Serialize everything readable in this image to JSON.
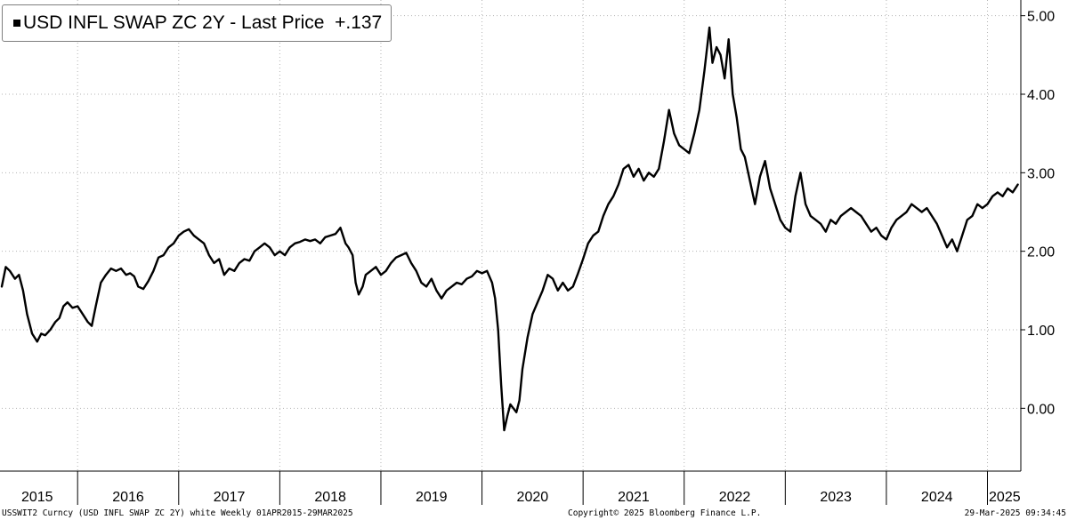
{
  "legend": {
    "label": "USD INFL SWAP ZC 2Y - Last Price",
    "last_value": "+.137"
  },
  "footer": {
    "left": "USSWIT2 Curncy (USD INFL SWAP ZC 2Y) white  Weekly 01APR2015-29MAR2025",
    "center": "Copyright© 2025 Bloomberg Finance L.P.",
    "right": "29-Mar-2025 09:34:45"
  },
  "colors": {
    "line": "#000000",
    "grid": "#b3b3b3",
    "background": "#ffffff"
  },
  "chart_data": {
    "type": "line",
    "title": "",
    "xlabel": "",
    "ylabel": "",
    "ylim": [
      -0.8,
      5.2
    ],
    "xlim": [
      2015.25,
      2025.33
    ],
    "yticks": [
      0,
      1,
      2,
      3,
      4,
      5
    ],
    "ytick_labels": [
      "0.00",
      "1.00",
      "2.00",
      "3.00",
      "4.00",
      "5.00"
    ],
    "x_boundaries": [
      2016,
      2017,
      2018,
      2019,
      2020,
      2021,
      2022,
      2023,
      2024,
      2025
    ],
    "year_labels": [
      {
        "label": "2015",
        "x": 2015.6
      },
      {
        "label": "2016",
        "x": 2016.5
      },
      {
        "label": "2017",
        "x": 2017.5
      },
      {
        "label": "2018",
        "x": 2018.5
      },
      {
        "label": "2019",
        "x": 2019.5
      },
      {
        "label": "2020",
        "x": 2020.5
      },
      {
        "label": "2021",
        "x": 2021.5
      },
      {
        "label": "2022",
        "x": 2022.5
      },
      {
        "label": "2023",
        "x": 2023.5
      },
      {
        "label": "2024",
        "x": 2024.5
      },
      {
        "label": "2025",
        "x": 2025.17
      }
    ],
    "grid": true,
    "legend_position": "top-left",
    "series": [
      {
        "name": "USD INFL SWAP ZC 2Y - Last Price",
        "points": [
          [
            2015.25,
            1.55
          ],
          [
            2015.29,
            1.8
          ],
          [
            2015.33,
            1.75
          ],
          [
            2015.38,
            1.65
          ],
          [
            2015.42,
            1.7
          ],
          [
            2015.46,
            1.5
          ],
          [
            2015.5,
            1.2
          ],
          [
            2015.55,
            0.95
          ],
          [
            2015.6,
            0.85
          ],
          [
            2015.64,
            0.95
          ],
          [
            2015.68,
            0.93
          ],
          [
            2015.73,
            1.0
          ],
          [
            2015.78,
            1.1
          ],
          [
            2015.82,
            1.15
          ],
          [
            2015.86,
            1.3
          ],
          [
            2015.9,
            1.35
          ],
          [
            2015.95,
            1.28
          ],
          [
            2016.0,
            1.3
          ],
          [
            2016.05,
            1.2
          ],
          [
            2016.1,
            1.1
          ],
          [
            2016.14,
            1.05
          ],
          [
            2016.18,
            1.3
          ],
          [
            2016.23,
            1.6
          ],
          [
            2016.28,
            1.7
          ],
          [
            2016.33,
            1.78
          ],
          [
            2016.38,
            1.75
          ],
          [
            2016.43,
            1.78
          ],
          [
            2016.48,
            1.7
          ],
          [
            2016.52,
            1.72
          ],
          [
            2016.56,
            1.68
          ],
          [
            2016.6,
            1.55
          ],
          [
            2016.65,
            1.52
          ],
          [
            2016.7,
            1.62
          ],
          [
            2016.75,
            1.75
          ],
          [
            2016.8,
            1.92
          ],
          [
            2016.85,
            1.95
          ],
          [
            2016.9,
            2.05
          ],
          [
            2016.95,
            2.1
          ],
          [
            2017.0,
            2.2
          ],
          [
            2017.05,
            2.25
          ],
          [
            2017.1,
            2.28
          ],
          [
            2017.15,
            2.2
          ],
          [
            2017.2,
            2.15
          ],
          [
            2017.25,
            2.1
          ],
          [
            2017.3,
            1.95
          ],
          [
            2017.35,
            1.85
          ],
          [
            2017.4,
            1.9
          ],
          [
            2017.45,
            1.7
          ],
          [
            2017.5,
            1.78
          ],
          [
            2017.55,
            1.75
          ],
          [
            2017.6,
            1.85
          ],
          [
            2017.65,
            1.9
          ],
          [
            2017.7,
            1.88
          ],
          [
            2017.75,
            2.0
          ],
          [
            2017.8,
            2.05
          ],
          [
            2017.85,
            2.1
          ],
          [
            2017.9,
            2.05
          ],
          [
            2017.95,
            1.95
          ],
          [
            2018.0,
            2.0
          ],
          [
            2018.05,
            1.95
          ],
          [
            2018.1,
            2.05
          ],
          [
            2018.15,
            2.1
          ],
          [
            2018.2,
            2.12
          ],
          [
            2018.25,
            2.15
          ],
          [
            2018.3,
            2.13
          ],
          [
            2018.35,
            2.15
          ],
          [
            2018.4,
            2.1
          ],
          [
            2018.45,
            2.18
          ],
          [
            2018.5,
            2.2
          ],
          [
            2018.55,
            2.22
          ],
          [
            2018.6,
            2.3
          ],
          [
            2018.65,
            2.1
          ],
          [
            2018.68,
            2.05
          ],
          [
            2018.72,
            1.95
          ],
          [
            2018.75,
            1.6
          ],
          [
            2018.78,
            1.45
          ],
          [
            2018.82,
            1.55
          ],
          [
            2018.85,
            1.7
          ],
          [
            2018.9,
            1.75
          ],
          [
            2018.95,
            1.8
          ],
          [
            2019.0,
            1.7
          ],
          [
            2019.05,
            1.75
          ],
          [
            2019.1,
            1.85
          ],
          [
            2019.15,
            1.92
          ],
          [
            2019.2,
            1.95
          ],
          [
            2019.25,
            1.98
          ],
          [
            2019.3,
            1.85
          ],
          [
            2019.35,
            1.75
          ],
          [
            2019.4,
            1.6
          ],
          [
            2019.45,
            1.55
          ],
          [
            2019.5,
            1.65
          ],
          [
            2019.55,
            1.5
          ],
          [
            2019.6,
            1.4
          ],
          [
            2019.65,
            1.5
          ],
          [
            2019.7,
            1.55
          ],
          [
            2019.75,
            1.6
          ],
          [
            2019.8,
            1.58
          ],
          [
            2019.85,
            1.65
          ],
          [
            2019.9,
            1.68
          ],
          [
            2019.95,
            1.75
          ],
          [
            2020.0,
            1.72
          ],
          [
            2020.05,
            1.75
          ],
          [
            2020.1,
            1.6
          ],
          [
            2020.13,
            1.4
          ],
          [
            2020.16,
            1.0
          ],
          [
            2020.19,
            0.3
          ],
          [
            2020.22,
            -0.28
          ],
          [
            2020.25,
            -0.1
          ],
          [
            2020.28,
            0.05
          ],
          [
            2020.31,
            0.0
          ],
          [
            2020.34,
            -0.05
          ],
          [
            2020.37,
            0.1
          ],
          [
            2020.4,
            0.5
          ],
          [
            2020.45,
            0.9
          ],
          [
            2020.5,
            1.2
          ],
          [
            2020.55,
            1.35
          ],
          [
            2020.6,
            1.5
          ],
          [
            2020.65,
            1.7
          ],
          [
            2020.7,
            1.65
          ],
          [
            2020.75,
            1.5
          ],
          [
            2020.8,
            1.6
          ],
          [
            2020.85,
            1.5
          ],
          [
            2020.9,
            1.55
          ],
          [
            2020.95,
            1.72
          ],
          [
            2021.0,
            1.9
          ],
          [
            2021.05,
            2.1
          ],
          [
            2021.1,
            2.2
          ],
          [
            2021.15,
            2.25
          ],
          [
            2021.2,
            2.45
          ],
          [
            2021.25,
            2.6
          ],
          [
            2021.3,
            2.7
          ],
          [
            2021.35,
            2.85
          ],
          [
            2021.4,
            3.05
          ],
          [
            2021.45,
            3.1
          ],
          [
            2021.5,
            2.95
          ],
          [
            2021.55,
            3.05
          ],
          [
            2021.6,
            2.9
          ],
          [
            2021.65,
            3.0
          ],
          [
            2021.7,
            2.95
          ],
          [
            2021.75,
            3.05
          ],
          [
            2021.8,
            3.4
          ],
          [
            2021.85,
            3.8
          ],
          [
            2021.9,
            3.5
          ],
          [
            2021.95,
            3.35
          ],
          [
            2022.0,
            3.3
          ],
          [
            2022.05,
            3.25
          ],
          [
            2022.1,
            3.5
          ],
          [
            2022.15,
            3.8
          ],
          [
            2022.2,
            4.3
          ],
          [
            2022.25,
            4.85
          ],
          [
            2022.28,
            4.4
          ],
          [
            2022.32,
            4.6
          ],
          [
            2022.36,
            4.5
          ],
          [
            2022.4,
            4.2
          ],
          [
            2022.44,
            4.7
          ],
          [
            2022.48,
            4.0
          ],
          [
            2022.52,
            3.7
          ],
          [
            2022.56,
            3.3
          ],
          [
            2022.6,
            3.2
          ],
          [
            2022.65,
            2.9
          ],
          [
            2022.7,
            2.6
          ],
          [
            2022.75,
            2.95
          ],
          [
            2022.8,
            3.15
          ],
          [
            2022.85,
            2.8
          ],
          [
            2022.9,
            2.6
          ],
          [
            2022.95,
            2.4
          ],
          [
            2023.0,
            2.3
          ],
          [
            2023.05,
            2.25
          ],
          [
            2023.1,
            2.7
          ],
          [
            2023.15,
            3.0
          ],
          [
            2023.2,
            2.6
          ],
          [
            2023.25,
            2.45
          ],
          [
            2023.3,
            2.4
          ],
          [
            2023.35,
            2.35
          ],
          [
            2023.4,
            2.25
          ],
          [
            2023.45,
            2.4
          ],
          [
            2023.5,
            2.35
          ],
          [
            2023.55,
            2.45
          ],
          [
            2023.6,
            2.5
          ],
          [
            2023.65,
            2.55
          ],
          [
            2023.7,
            2.5
          ],
          [
            2023.75,
            2.45
          ],
          [
            2023.8,
            2.35
          ],
          [
            2023.85,
            2.25
          ],
          [
            2023.9,
            2.3
          ],
          [
            2023.95,
            2.2
          ],
          [
            2024.0,
            2.15
          ],
          [
            2024.05,
            2.3
          ],
          [
            2024.1,
            2.4
          ],
          [
            2024.15,
            2.45
          ],
          [
            2024.2,
            2.5
          ],
          [
            2024.25,
            2.6
          ],
          [
            2024.3,
            2.55
          ],
          [
            2024.35,
            2.5
          ],
          [
            2024.4,
            2.55
          ],
          [
            2024.45,
            2.45
          ],
          [
            2024.5,
            2.35
          ],
          [
            2024.55,
            2.2
          ],
          [
            2024.6,
            2.05
          ],
          [
            2024.65,
            2.15
          ],
          [
            2024.7,
            2.0
          ],
          [
            2024.75,
            2.2
          ],
          [
            2024.8,
            2.4
          ],
          [
            2024.85,
            2.45
          ],
          [
            2024.9,
            2.6
          ],
          [
            2024.95,
            2.55
          ],
          [
            2025.0,
            2.6
          ],
          [
            2025.05,
            2.7
          ],
          [
            2025.1,
            2.75
          ],
          [
            2025.15,
            2.7
          ],
          [
            2025.2,
            2.8
          ],
          [
            2025.25,
            2.75
          ],
          [
            2025.3,
            2.85
          ]
        ]
      }
    ]
  }
}
